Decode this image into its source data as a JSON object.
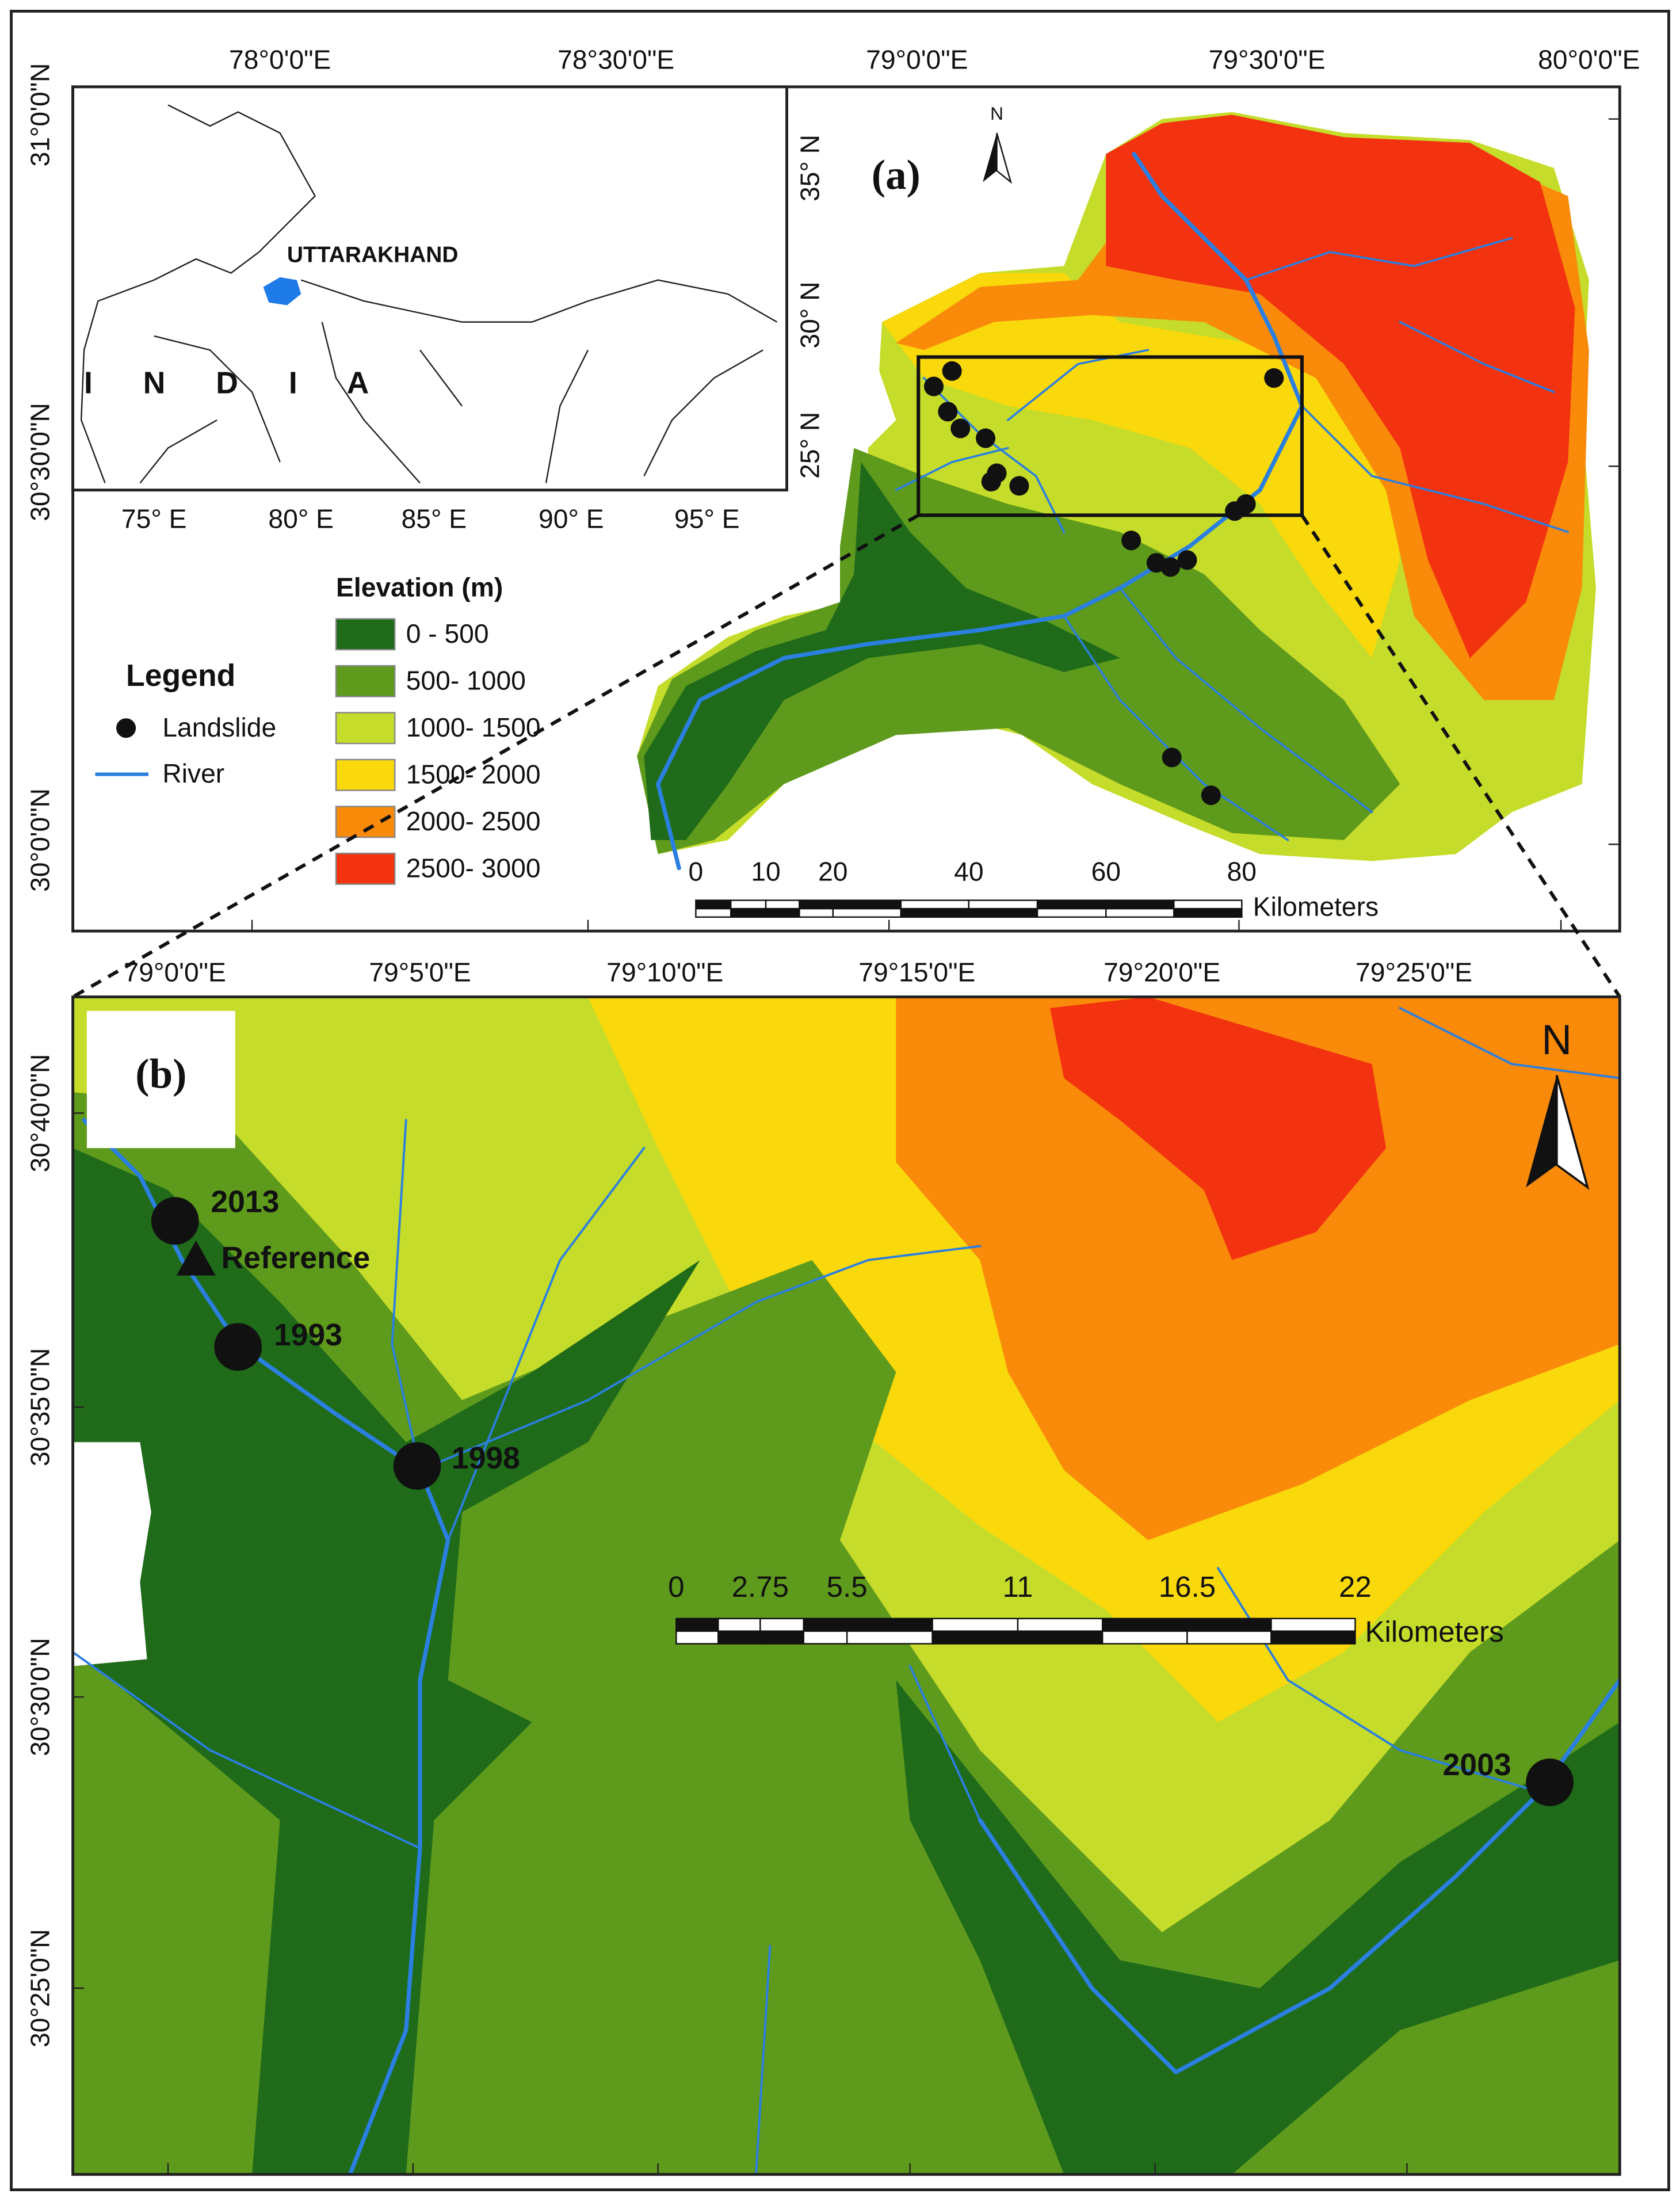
{
  "panel_a": {
    "label": "(a)",
    "top_axis": [
      "78°0'0\"E",
      "78°30'0\"E",
      "79°0'0\"E",
      "79°30'0\"E",
      "80°0'0\"E"
    ],
    "left_axis": [
      "31°0'0\"N",
      "30°30'0\"N",
      "30°0'0\"N"
    ],
    "north": "N",
    "inset": {
      "country": "I N D I A",
      "state": "UTTARAKHAND",
      "x_axis": [
        "75° E",
        "80° E",
        "85° E",
        "90° E",
        "95° E"
      ],
      "y_axis": [
        "35° N",
        "30° N",
        "25° N"
      ]
    },
    "scale": {
      "ticks": [
        "0",
        "10",
        "20",
        "40",
        "60",
        "80"
      ],
      "unit": "Kilometers"
    }
  },
  "legend": {
    "title": "Legend",
    "items": [
      "Landslide",
      "River"
    ],
    "elevation_title": "Elevation (m)",
    "classes": [
      {
        "label": "0 - 500",
        "color": "#1f6b1a"
      },
      {
        "label": "500- 1000",
        "color": "#5e9a1c"
      },
      {
        "label": "1000- 1500",
        "color": "#c5dc2a"
      },
      {
        "label": "1500- 2000",
        "color": "#f9d80c"
      },
      {
        "label": "2000- 2500",
        "color": "#f98a0a"
      },
      {
        "label": "2500- 3000",
        "color": "#f3320f"
      }
    ]
  },
  "panel_b": {
    "label": "(b)",
    "top_axis": [
      "79°0'0\"E",
      "79°5'0\"E",
      "79°10'0\"E",
      "79°15'0\"E",
      "79°20'0\"E",
      "79°25'0\"E"
    ],
    "left_axis": [
      "30°40'0\"N",
      "30°35'0\"N",
      "30°30'0\"N",
      "30°25'0\"N"
    ],
    "north": "N",
    "events": [
      "2013",
      "1993",
      "1998",
      "2003"
    ],
    "reference": "Reference",
    "scale": {
      "ticks": [
        "0",
        "2.75",
        "5.5",
        "11",
        "16.5",
        "22"
      ],
      "unit": "Kilometers"
    }
  }
}
